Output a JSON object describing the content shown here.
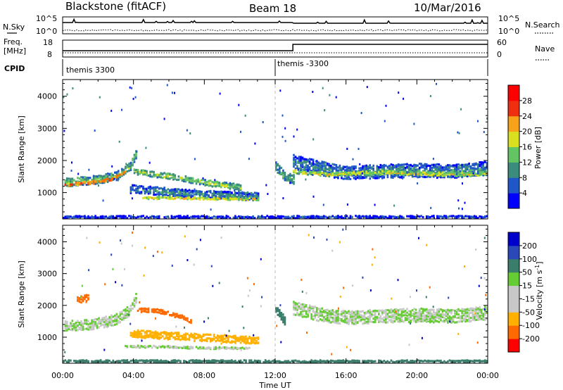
{
  "header": {
    "station": "Blackstone (fitACF)",
    "beam": "Beam 18",
    "date": "10/Mar/2016"
  },
  "noise_panel": {
    "left_label": "N.Sky",
    "right_label": "N.Search",
    "ticks_left": [
      "10^5",
      "10^0"
    ],
    "ticks_right": [
      "10^5",
      "10^0"
    ]
  },
  "freq_panel": {
    "left_label_top": "Freq.",
    "left_label_bottom": "[MHz]",
    "right_label": "Nave",
    "ticks_left": [
      "18",
      "8"
    ],
    "ticks_right": [
      "60",
      "0"
    ]
  },
  "cpid_panel": {
    "label": "CPID",
    "segments": [
      {
        "name": "themis 3300",
        "start_hour": 0
      },
      {
        "name": "themis -3300",
        "start_hour": 12
      }
    ]
  },
  "colors": {
    "power": [
      "#0000ff",
      "#1f57c8",
      "#3c8c7e",
      "#63c463",
      "#d8e020",
      "#f6a21a",
      "#f4720c",
      "#ee3010",
      "#ff0000"
    ],
    "velocity": [
      "#ff0000",
      "#ff6a00",
      "#ffb000",
      "#c8c8c8",
      "#c8c8c8",
      "#66cc33",
      "#3a7d6a",
      "#2a48b8",
      "#0000cc"
    ]
  },
  "chart_data": [
    {
      "type": "heatmap",
      "name": "power",
      "ylabel": "Slant Range [km]",
      "ylim": [
        180,
        4520
      ],
      "yticks": [
        1000,
        2000,
        3000,
        4000
      ],
      "xlim": [
        0,
        24
      ],
      "colorbar_label": "Power [dB]",
      "colorbar_ticks": [
        4,
        8,
        12,
        16,
        20,
        24,
        28
      ],
      "colorbar_range": [
        0,
        32
      ],
      "regions": [
        {
          "t": [
            0.1,
            1.8,
            3.0,
            3.8,
            4.2
          ],
          "range": [
            1300,
            1380,
            1500,
            1800,
            2300
          ],
          "width": 260,
          "value": 14
        },
        {
          "t": [
            0.1,
            1.5,
            2.8,
            3.6
          ],
          "range": [
            1230,
            1300,
            1400,
            1700
          ],
          "width": 90,
          "value": 28
        },
        {
          "t": [
            3.8,
            5.0,
            6.5,
            8.0,
            9.5,
            11.0
          ],
          "range": [
            1100,
            1050,
            980,
            930,
            900,
            870
          ],
          "width": 250,
          "value": 10
        },
        {
          "t": [
            4.0,
            6.0,
            8.0,
            10.0
          ],
          "range": [
            1650,
            1500,
            1300,
            1150
          ],
          "width": 180,
          "value": 16
        },
        {
          "t": [
            4.5,
            6.5,
            9.0,
            11.0
          ],
          "range": [
            820,
            820,
            800,
            780
          ],
          "width": 70,
          "value": 20
        },
        {
          "t": [
            12.0,
            12.5,
            13.0
          ],
          "range": [
            1800,
            1500,
            1400
          ],
          "width": 300,
          "value": 13
        },
        {
          "t": [
            13.0,
            14.5,
            16.0,
            18.0,
            20.0,
            22.0,
            24.0
          ],
          "range": [
            1950,
            1750,
            1600,
            1650,
            1680,
            1650,
            1750
          ],
          "width": 420,
          "value": 10
        },
        {
          "t": [
            13.0,
            15.0,
            17.0,
            19.0,
            21.0,
            23.0,
            24.0
          ],
          "range": [
            1650,
            1550,
            1600,
            1600,
            1560,
            1560,
            1600
          ],
          "width": 120,
          "value": 19
        },
        {
          "t": [
            0.0,
            24.0
          ],
          "range": [
            230,
            230
          ],
          "width": 70,
          "value": 6
        }
      ]
    },
    {
      "type": "heatmap",
      "name": "velocity",
      "ylabel": "Slant Range [km]",
      "ylim": [
        180,
        4520
      ],
      "yticks": [
        1000,
        2000,
        3000,
        4000
      ],
      "xlim": [
        0,
        24
      ],
      "xticks": [
        "00:00",
        "04:00",
        "08:00",
        "12:00",
        "16:00",
        "20:00",
        "00:00"
      ],
      "xlabel": "Time UT",
      "colorbar_label": "Velocity [m s^-1]",
      "colorbar_ticks": [
        200,
        100,
        50,
        15,
        -15,
        -50,
        -100,
        -200
      ],
      "regions": [
        {
          "t": [
            0.1,
            1.8,
            3.0,
            3.8,
            4.2
          ],
          "range": [
            1350,
            1400,
            1550,
            1850,
            2300
          ],
          "width": 330,
          "value": 0
        },
        {
          "t": [
            0.8,
            1.5
          ],
          "range": [
            2150,
            2250
          ],
          "width": 200,
          "value": -120
        },
        {
          "t": [
            3.8,
            5.5,
            7.5,
            9.5,
            11.0
          ],
          "range": [
            1100,
            1050,
            980,
            930,
            880
          ],
          "width": 230,
          "value": -60
        },
        {
          "t": [
            4.2,
            5.5,
            6.5,
            7.2
          ],
          "range": [
            1850,
            1800,
            1650,
            1500
          ],
          "width": 130,
          "value": -180
        },
        {
          "t": [
            3.5,
            6.0,
            8.0,
            10.5
          ],
          "range": [
            700,
            680,
            650,
            640
          ],
          "width": 60,
          "value": 0
        },
        {
          "t": [
            12.0,
            12.5
          ],
          "range": [
            1900,
            1500
          ],
          "width": 260,
          "value": 35
        },
        {
          "t": [
            13.0,
            14.5,
            16.0,
            18.0,
            20.0,
            22.0,
            24.0
          ],
          "range": [
            1900,
            1700,
            1600,
            1650,
            1680,
            1650,
            1750
          ],
          "width": 420,
          "value": 0
        },
        {
          "t": [
            0.0,
            24.0
          ],
          "range": [
            230,
            230
          ],
          "width": 70,
          "value": 30
        }
      ]
    }
  ]
}
